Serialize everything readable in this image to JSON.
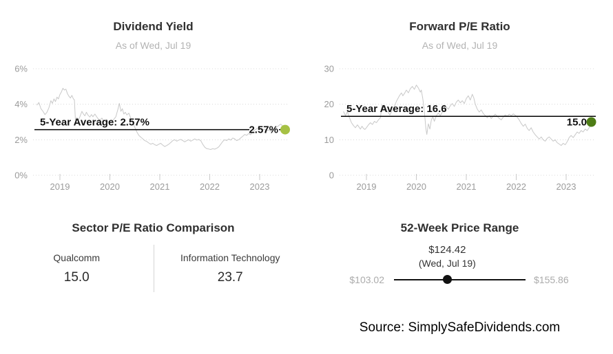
{
  "source": "Source: SimplySafeDividends.com",
  "chart_data": [
    {
      "type": "line",
      "title": "Dividend Yield",
      "subtitle": "As of Wed, Jul 19",
      "y_range": [
        0,
        6
      ],
      "x_range": [
        2018.5,
        2023.6
      ],
      "grid": "dotted-horizontal",
      "line_color": "#c8c8c8",
      "yticks": [
        {
          "v": 6,
          "label": "6%"
        },
        {
          "v": 4,
          "label": "4%"
        },
        {
          "v": 2,
          "label": "2%"
        },
        {
          "v": 0,
          "label": "0%"
        }
      ],
      "xticks": [
        {
          "v": 2019,
          "label": "2019"
        },
        {
          "v": 2020,
          "label": "2020"
        },
        {
          "v": 2021,
          "label": "2021"
        },
        {
          "v": 2022,
          "label": "2022"
        },
        {
          "v": 2023,
          "label": "2023"
        }
      ],
      "average": {
        "value": 2.57,
        "label": "5-Year Average: 2.57%"
      },
      "current": {
        "value": 2.57,
        "label": "2.57%",
        "dot_color": "#a6c144"
      },
      "series": [
        [
          2018.54,
          3.95
        ],
        [
          2018.58,
          4.1
        ],
        [
          2018.62,
          3.75
        ],
        [
          2018.66,
          3.6
        ],
        [
          2018.7,
          3.42
        ],
        [
          2018.74,
          3.55
        ],
        [
          2018.78,
          3.8
        ],
        [
          2018.82,
          4.2
        ],
        [
          2018.85,
          4.05
        ],
        [
          2018.88,
          4.3
        ],
        [
          2018.91,
          4.15
        ],
        [
          2018.94,
          4.4
        ],
        [
          2018.97,
          4.3
        ],
        [
          2019.0,
          4.55
        ],
        [
          2019.03,
          4.7
        ],
        [
          2019.06,
          4.9
        ],
        [
          2019.09,
          4.8
        ],
        [
          2019.12,
          4.85
        ],
        [
          2019.15,
          4.6
        ],
        [
          2019.18,
          4.45
        ],
        [
          2019.21,
          4.35
        ],
        [
          2019.24,
          4.5
        ],
        [
          2019.27,
          4.3
        ],
        [
          2019.29,
          4.25
        ],
        [
          2019.31,
          3.1
        ],
        [
          2019.34,
          3.25
        ],
        [
          2019.37,
          3.1
        ],
        [
          2019.4,
          3.3
        ],
        [
          2019.44,
          3.6
        ],
        [
          2019.47,
          3.45
        ],
        [
          2019.5,
          3.35
        ],
        [
          2019.53,
          3.55
        ],
        [
          2019.56,
          3.4
        ],
        [
          2019.6,
          3.28
        ],
        [
          2019.63,
          3.42
        ],
        [
          2019.66,
          3.3
        ],
        [
          2019.7,
          3.45
        ],
        [
          2019.73,
          3.32
        ],
        [
          2019.76,
          3.2
        ],
        [
          2019.8,
          3.1
        ],
        [
          2019.84,
          3.22
        ],
        [
          2019.88,
          3.05
        ],
        [
          2019.92,
          3.15
        ],
        [
          2019.96,
          3.0
        ],
        [
          2020.0,
          2.98
        ],
        [
          2020.04,
          3.05
        ],
        [
          2020.08,
          3.15
        ],
        [
          2020.12,
          3.3
        ],
        [
          2020.16,
          3.7
        ],
        [
          2020.19,
          4.05
        ],
        [
          2020.22,
          3.6
        ],
        [
          2020.25,
          3.75
        ],
        [
          2020.28,
          3.45
        ],
        [
          2020.31,
          3.55
        ],
        [
          2020.34,
          3.4
        ],
        [
          2020.38,
          3.5
        ],
        [
          2020.42,
          3.2
        ],
        [
          2020.46,
          2.95
        ],
        [
          2020.5,
          2.7
        ],
        [
          2020.54,
          2.45
        ],
        [
          2020.58,
          2.25
        ],
        [
          2020.62,
          2.15
        ],
        [
          2020.66,
          2.05
        ],
        [
          2020.7,
          1.95
        ],
        [
          2020.74,
          1.9
        ],
        [
          2020.78,
          1.82
        ],
        [
          2020.82,
          1.75
        ],
        [
          2020.86,
          1.8
        ],
        [
          2020.9,
          1.72
        ],
        [
          2020.94,
          1.68
        ],
        [
          2020.98,
          1.75
        ],
        [
          2021.02,
          1.8
        ],
        [
          2021.06,
          1.7
        ],
        [
          2021.1,
          1.62
        ],
        [
          2021.14,
          1.68
        ],
        [
          2021.18,
          1.75
        ],
        [
          2021.22,
          1.85
        ],
        [
          2021.26,
          1.95
        ],
        [
          2021.3,
          2.0
        ],
        [
          2021.34,
          1.92
        ],
        [
          2021.38,
          1.98
        ],
        [
          2021.42,
          2.02
        ],
        [
          2021.46,
          1.95
        ],
        [
          2021.5,
          1.88
        ],
        [
          2021.54,
          1.95
        ],
        [
          2021.58,
          2.0
        ],
        [
          2021.62,
          1.92
        ],
        [
          2021.66,
          1.98
        ],
        [
          2021.7,
          2.05
        ],
        [
          2021.74,
          1.98
        ],
        [
          2021.78,
          2.02
        ],
        [
          2021.82,
          1.95
        ],
        [
          2021.86,
          1.75
        ],
        [
          2021.9,
          1.58
        ],
        [
          2021.94,
          1.5
        ],
        [
          2021.98,
          1.48
        ],
        [
          2022.02,
          1.45
        ],
        [
          2022.06,
          1.5
        ],
        [
          2022.1,
          1.47
        ],
        [
          2022.14,
          1.52
        ],
        [
          2022.18,
          1.6
        ],
        [
          2022.22,
          1.75
        ],
        [
          2022.26,
          1.9
        ],
        [
          2022.3,
          2.0
        ],
        [
          2022.34,
          1.95
        ],
        [
          2022.38,
          2.05
        ],
        [
          2022.42,
          1.98
        ],
        [
          2022.46,
          2.1
        ],
        [
          2022.5,
          2.05
        ],
        [
          2022.54,
          1.95
        ],
        [
          2022.58,
          2.0
        ],
        [
          2022.62,
          2.1
        ],
        [
          2022.66,
          2.2
        ],
        [
          2022.7,
          2.3
        ],
        [
          2022.74,
          2.25
        ],
        [
          2022.78,
          2.35
        ],
        [
          2022.82,
          2.28
        ],
        [
          2022.86,
          2.45
        ],
        [
          2022.9,
          2.55
        ],
        [
          2022.94,
          2.62
        ],
        [
          2022.98,
          2.7
        ],
        [
          2023.02,
          2.65
        ],
        [
          2023.06,
          2.55
        ],
        [
          2023.1,
          2.6
        ],
        [
          2023.14,
          2.5
        ],
        [
          2023.18,
          2.56
        ],
        [
          2023.22,
          2.48
        ],
        [
          2023.26,
          2.55
        ],
        [
          2023.3,
          2.62
        ],
        [
          2023.34,
          2.7
        ],
        [
          2023.38,
          2.8
        ],
        [
          2023.42,
          2.88
        ],
        [
          2023.46,
          2.78
        ],
        [
          2023.5,
          2.68
        ],
        [
          2023.53,
          2.6
        ],
        [
          2023.55,
          2.57
        ]
      ]
    },
    {
      "type": "line",
      "title": "Forward P/E Ratio",
      "subtitle": "As of Wed, Jul 19",
      "y_range": [
        0,
        30
      ],
      "x_range": [
        2018.5,
        2023.6
      ],
      "grid": "dotted-horizontal",
      "line_color": "#c8c8c8",
      "yticks": [
        {
          "v": 30,
          "label": "30"
        },
        {
          "v": 20,
          "label": "20"
        },
        {
          "v": 10,
          "label": "10"
        },
        {
          "v": 0,
          "label": "0"
        }
      ],
      "xticks": [
        {
          "v": 2019,
          "label": "2019"
        },
        {
          "v": 2020,
          "label": "2020"
        },
        {
          "v": 2021,
          "label": "2021"
        },
        {
          "v": 2022,
          "label": "2022"
        },
        {
          "v": 2023,
          "label": "2023"
        }
      ],
      "average": {
        "value": 16.6,
        "label": "5-Year Average: 16.6"
      },
      "current": {
        "value": 15.0,
        "label": "15.0",
        "dot_color": "#4d7c15"
      },
      "series": [
        [
          2018.54,
          18.0
        ],
        [
          2018.58,
          16.8
        ],
        [
          2018.62,
          17.9
        ],
        [
          2018.66,
          16.2
        ],
        [
          2018.7,
          14.8
        ],
        [
          2018.74,
          14.0
        ],
        [
          2018.78,
          13.4
        ],
        [
          2018.82,
          14.2
        ],
        [
          2018.85,
          13.6
        ],
        [
          2018.88,
          13.0
        ],
        [
          2018.91,
          13.8
        ],
        [
          2018.94,
          13.2
        ],
        [
          2018.97,
          12.9
        ],
        [
          2019.0,
          13.4
        ],
        [
          2019.04,
          14.2
        ],
        [
          2019.08,
          14.8
        ],
        [
          2019.12,
          14.3
        ],
        [
          2019.16,
          15.2
        ],
        [
          2019.2,
          14.8
        ],
        [
          2019.24,
          15.6
        ],
        [
          2019.28,
          16.2
        ],
        [
          2019.31,
          19.8
        ],
        [
          2019.34,
          18.8
        ],
        [
          2019.37,
          19.6
        ],
        [
          2019.4,
          18.4
        ],
        [
          2019.44,
          17.6
        ],
        [
          2019.47,
          17.0
        ],
        [
          2019.5,
          17.8
        ],
        [
          2019.53,
          18.6
        ],
        [
          2019.56,
          19.4
        ],
        [
          2019.6,
          20.8
        ],
        [
          2019.63,
          21.6
        ],
        [
          2019.66,
          22.4
        ],
        [
          2019.7,
          23.2
        ],
        [
          2019.73,
          22.4
        ],
        [
          2019.76,
          23.0
        ],
        [
          2019.8,
          24.0
        ],
        [
          2019.84,
          23.2
        ],
        [
          2019.88,
          24.4
        ],
        [
          2019.92,
          25.0
        ],
        [
          2019.96,
          24.2
        ],
        [
          2020.0,
          25.4
        ],
        [
          2020.04,
          24.6
        ],
        [
          2020.08,
          23.4
        ],
        [
          2020.1,
          24.0
        ],
        [
          2020.13,
          21.5
        ],
        [
          2020.16,
          18.0
        ],
        [
          2020.19,
          13.2
        ],
        [
          2020.21,
          11.5
        ],
        [
          2020.24,
          14.5
        ],
        [
          2020.27,
          13.0
        ],
        [
          2020.3,
          15.5
        ],
        [
          2020.33,
          16.5
        ],
        [
          2020.36,
          15.2
        ],
        [
          2020.4,
          16.8
        ],
        [
          2020.44,
          17.5
        ],
        [
          2020.48,
          16.8
        ],
        [
          2020.52,
          17.8
        ],
        [
          2020.56,
          18.4
        ],
        [
          2020.6,
          19.2
        ],
        [
          2020.64,
          18.6
        ],
        [
          2020.68,
          19.6
        ],
        [
          2020.72,
          20.2
        ],
        [
          2020.76,
          19.4
        ],
        [
          2020.8,
          20.6
        ],
        [
          2020.84,
          21.2
        ],
        [
          2020.88,
          20.4
        ],
        [
          2020.92,
          21.0
        ],
        [
          2020.96,
          20.2
        ],
        [
          2021.0,
          21.6
        ],
        [
          2021.04,
          22.4
        ],
        [
          2021.08,
          21.2
        ],
        [
          2021.12,
          22.8
        ],
        [
          2021.15,
          21.8
        ],
        [
          2021.18,
          20.0
        ],
        [
          2021.22,
          18.6
        ],
        [
          2021.26,
          17.8
        ],
        [
          2021.3,
          18.4
        ],
        [
          2021.34,
          17.4
        ],
        [
          2021.38,
          16.8
        ],
        [
          2021.42,
          16.2
        ],
        [
          2021.46,
          16.8
        ],
        [
          2021.5,
          16.0
        ],
        [
          2021.54,
          16.6
        ],
        [
          2021.58,
          17.2
        ],
        [
          2021.62,
          16.6
        ],
        [
          2021.66,
          16.0
        ],
        [
          2021.7,
          15.6
        ],
        [
          2021.74,
          16.4
        ],
        [
          2021.78,
          17.0
        ],
        [
          2021.82,
          16.6
        ],
        [
          2021.86,
          17.2
        ],
        [
          2021.9,
          16.8
        ],
        [
          2021.94,
          17.3
        ],
        [
          2021.98,
          16.9
        ],
        [
          2022.02,
          16.4
        ],
        [
          2022.06,
          15.6
        ],
        [
          2022.1,
          14.6
        ],
        [
          2022.14,
          13.8
        ],
        [
          2022.18,
          14.4
        ],
        [
          2022.22,
          13.2
        ],
        [
          2022.26,
          12.6
        ],
        [
          2022.3,
          13.4
        ],
        [
          2022.34,
          12.2
        ],
        [
          2022.38,
          11.4
        ],
        [
          2022.42,
          10.8
        ],
        [
          2022.46,
          10.2
        ],
        [
          2022.5,
          10.8
        ],
        [
          2022.54,
          10.0
        ],
        [
          2022.58,
          9.6
        ],
        [
          2022.62,
          10.4
        ],
        [
          2022.66,
          10.8
        ],
        [
          2022.7,
          10.2
        ],
        [
          2022.74,
          9.6
        ],
        [
          2022.78,
          10.0
        ],
        [
          2022.82,
          9.2
        ],
        [
          2022.86,
          8.8
        ],
        [
          2022.9,
          8.4
        ],
        [
          2022.94,
          9.0
        ],
        [
          2022.98,
          8.6
        ],
        [
          2023.02,
          9.4
        ],
        [
          2023.06,
          10.6
        ],
        [
          2023.1,
          11.2
        ],
        [
          2023.14,
          10.6
        ],
        [
          2023.18,
          11.4
        ],
        [
          2023.22,
          12.2
        ],
        [
          2023.26,
          11.8
        ],
        [
          2023.3,
          12.6
        ],
        [
          2023.34,
          12.2
        ],
        [
          2023.38,
          13.0
        ],
        [
          2023.42,
          12.6
        ],
        [
          2023.46,
          13.4
        ],
        [
          2023.5,
          14.2
        ],
        [
          2023.53,
          14.8
        ],
        [
          2023.55,
          15.0
        ]
      ]
    },
    {
      "type": "table",
      "title": "Sector P/E Ratio Comparison",
      "columns": [
        {
          "label": "Qualcomm",
          "value": "15.0"
        },
        {
          "label": "Information Technology",
          "value": "23.7"
        }
      ]
    },
    {
      "type": "range",
      "title": "52-Week Price Range",
      "low": 103.02,
      "high": 155.86,
      "current": 124.42,
      "low_label": "$103.02",
      "high_label": "$155.86",
      "current_label": "$124.42",
      "current_date": "(Wed, Jul 19)"
    }
  ]
}
